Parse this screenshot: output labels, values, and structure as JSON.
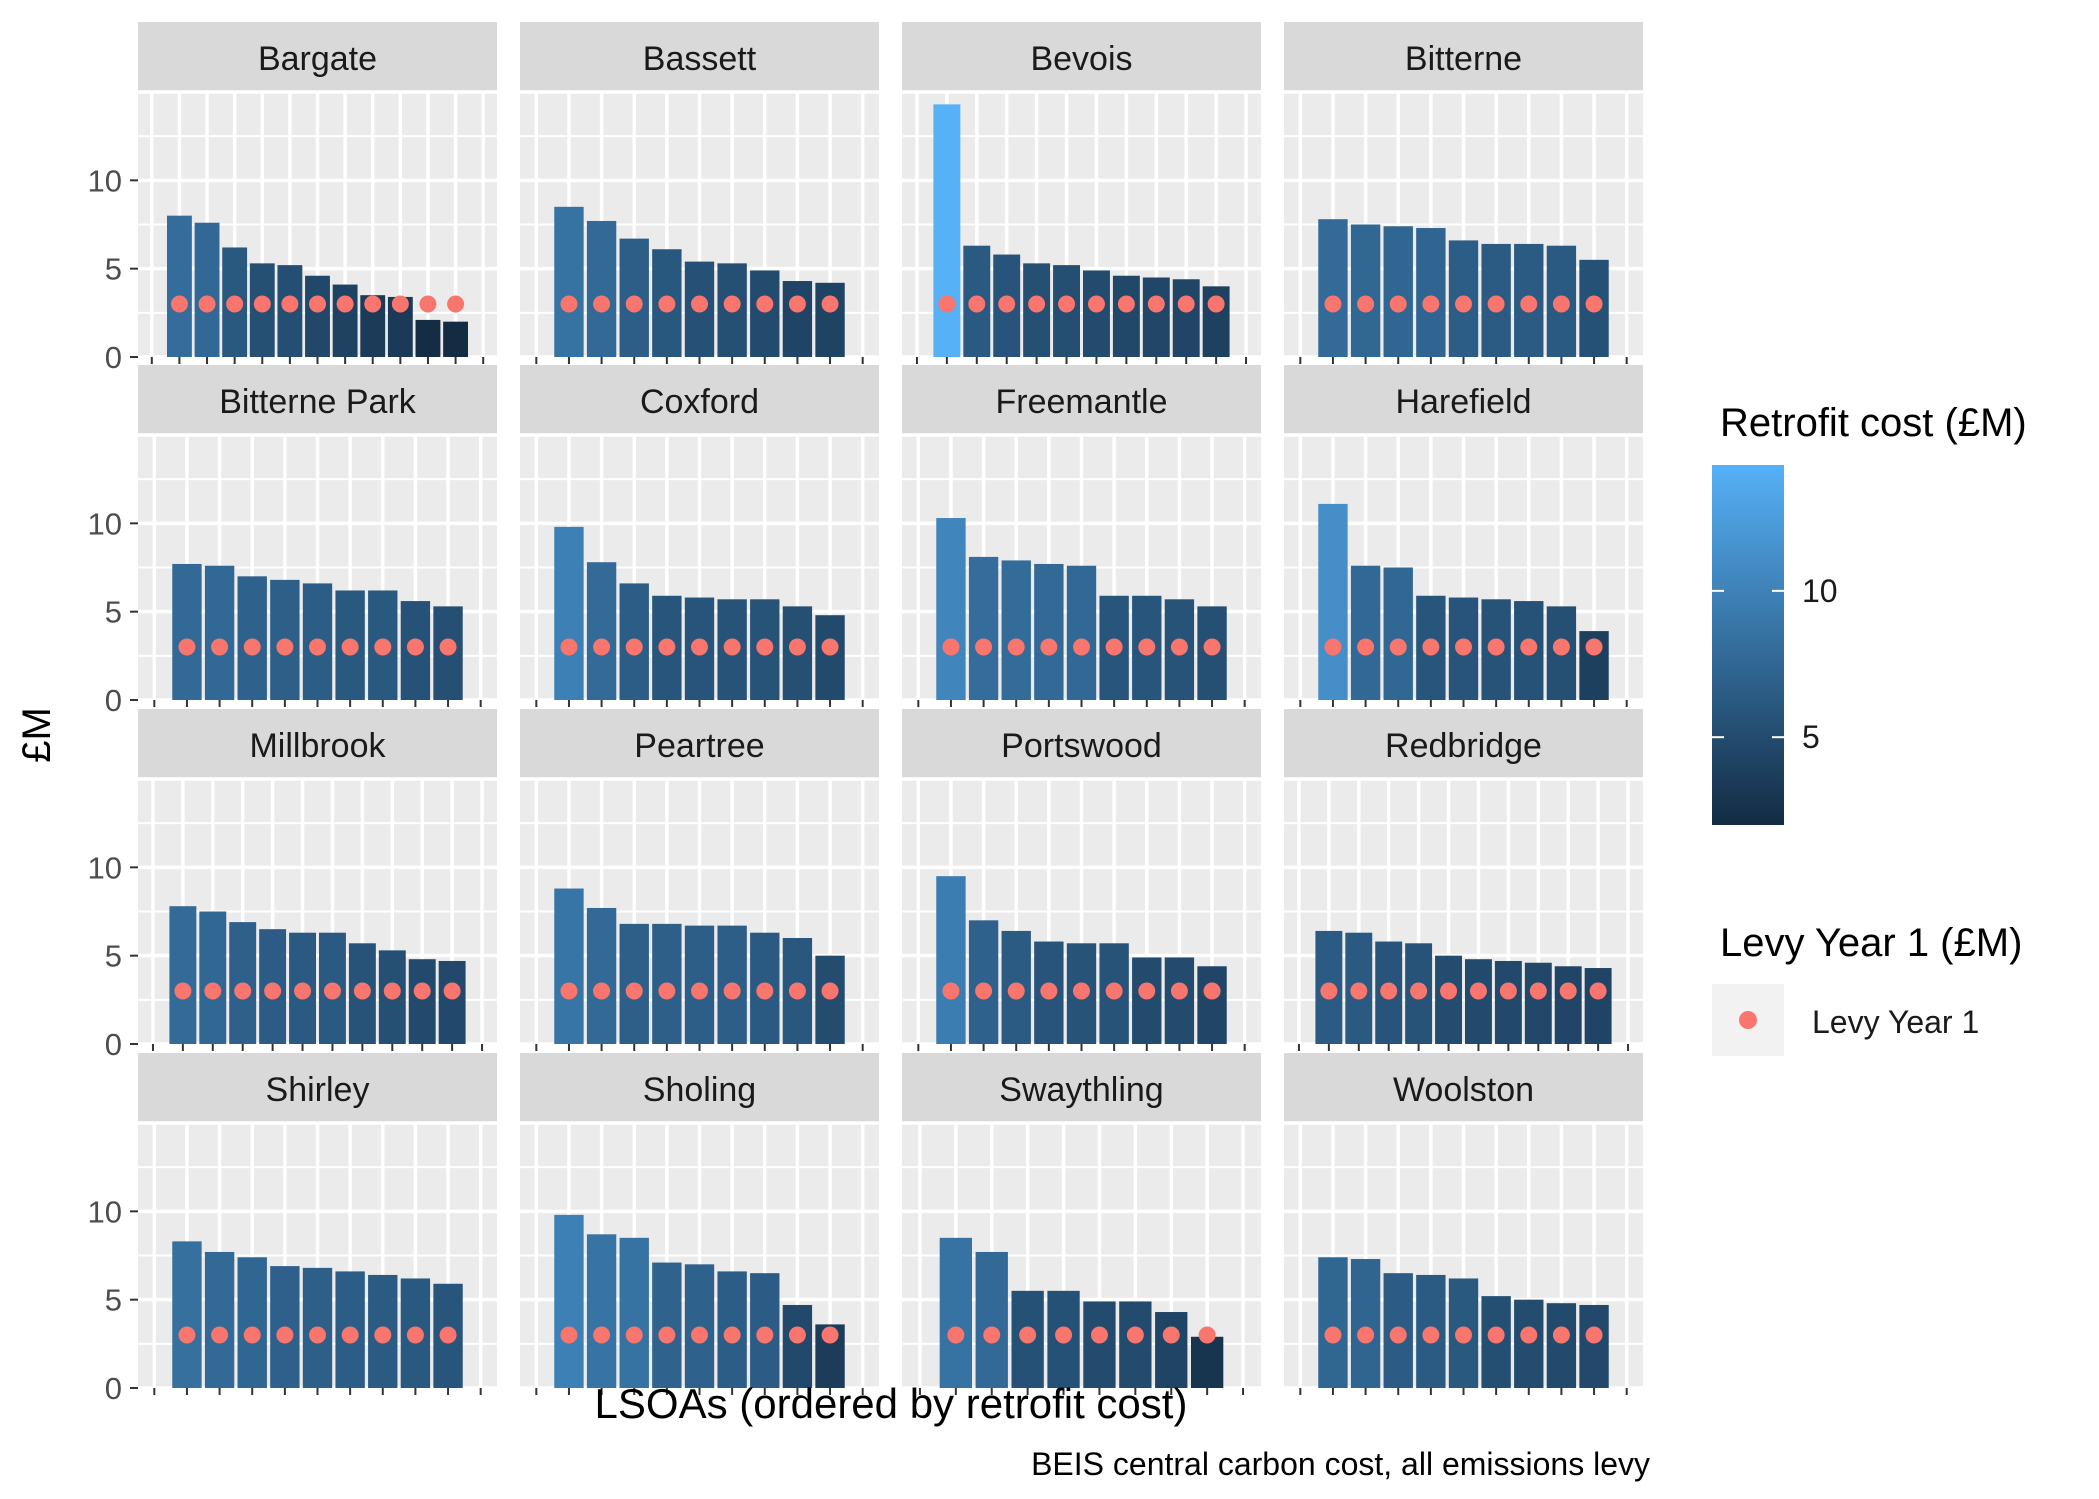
{
  "chart_data": {
    "type": "bar",
    "subtype": "faceted bar chart with point overlay",
    "xlabel": "LSOAs (ordered by retrofit cost)",
    "ylabel": "£M",
    "caption": "BEIS central carbon cost, all emissions levy",
    "ylim": [
      0,
      15
    ],
    "yticks": [
      "0",
      "5",
      "10"
    ],
    "facet_layout": "4x4",
    "colors": {
      "panel_bg": "#EBEBEB",
      "strip_bg": "#D9D9D9",
      "grid": "#FFFFFF",
      "gradient_low": "#132B43",
      "gradient_high": "#56B1F7",
      "levy_point": "#F8766D"
    },
    "legend": {
      "position": "right",
      "fill_title": "Retrofit cost (£M)",
      "fill_range": [
        2,
        14.3
      ],
      "fill_breaks": [
        "5",
        "10"
      ],
      "point_title": "Levy Year 1 (£M)",
      "point_label": "Levy Year 1"
    },
    "panels": [
      {
        "ward": "Bargate",
        "retrofit": [
          8.0,
          7.6,
          6.2,
          5.3,
          5.2,
          4.6,
          4.1,
          3.5,
          3.4,
          2.1,
          2.0
        ],
        "levy": [
          3.0,
          3.0,
          3.0,
          3.0,
          3.0,
          3.0,
          3.0,
          3.0,
          3.0,
          3.0,
          3.0
        ]
      },
      {
        "ward": "Bassett",
        "retrofit": [
          8.5,
          7.7,
          6.7,
          6.1,
          5.4,
          5.3,
          4.9,
          4.3,
          4.2
        ],
        "levy": [
          3.0,
          3.0,
          3.0,
          3.0,
          3.0,
          3.0,
          3.0,
          3.0,
          3.0
        ]
      },
      {
        "ward": "Bevois",
        "retrofit": [
          14.3,
          6.3,
          5.8,
          5.3,
          5.2,
          4.9,
          4.6,
          4.5,
          4.4,
          4.0
        ],
        "levy": [
          3.0,
          3.0,
          3.0,
          3.0,
          3.0,
          3.0,
          3.0,
          3.0,
          3.0,
          3.0
        ]
      },
      {
        "ward": "Bitterne",
        "retrofit": [
          7.8,
          7.5,
          7.4,
          7.3,
          6.6,
          6.4,
          6.4,
          6.3,
          5.5
        ],
        "levy": [
          3.0,
          3.0,
          3.0,
          3.0,
          3.0,
          3.0,
          3.0,
          3.0,
          3.0
        ]
      },
      {
        "ward": "Bitterne Park",
        "retrofit": [
          7.7,
          7.6,
          7.0,
          6.8,
          6.6,
          6.2,
          6.2,
          5.6,
          5.3
        ],
        "levy": [
          3.0,
          3.0,
          3.0,
          3.0,
          3.0,
          3.0,
          3.0,
          3.0,
          3.0
        ]
      },
      {
        "ward": "Coxford",
        "retrofit": [
          9.8,
          7.8,
          6.6,
          5.9,
          5.8,
          5.7,
          5.7,
          5.3,
          4.8
        ],
        "levy": [
          3.0,
          3.0,
          3.0,
          3.0,
          3.0,
          3.0,
          3.0,
          3.0,
          3.0
        ]
      },
      {
        "ward": "Freemantle",
        "retrofit": [
          10.3,
          8.1,
          7.9,
          7.7,
          7.6,
          5.9,
          5.9,
          5.7,
          5.3
        ],
        "levy": [
          3.0,
          3.0,
          3.0,
          3.0,
          3.0,
          3.0,
          3.0,
          3.0,
          3.0
        ]
      },
      {
        "ward": "Harefield",
        "retrofit": [
          11.1,
          7.6,
          7.5,
          5.9,
          5.8,
          5.7,
          5.6,
          5.3,
          3.9
        ],
        "levy": [
          3.0,
          3.0,
          3.0,
          3.0,
          3.0,
          3.0,
          3.0,
          3.0,
          3.0
        ]
      },
      {
        "ward": "Millbrook",
        "retrofit": [
          7.8,
          7.5,
          6.9,
          6.5,
          6.3,
          6.3,
          5.7,
          5.3,
          4.8,
          4.7
        ],
        "levy": [
          3.0,
          3.0,
          3.0,
          3.0,
          3.0,
          3.0,
          3.0,
          3.0,
          3.0,
          3.0
        ]
      },
      {
        "ward": "Peartree",
        "retrofit": [
          8.8,
          7.7,
          6.8,
          6.8,
          6.7,
          6.7,
          6.3,
          6.0,
          5.0
        ],
        "levy": [
          3.0,
          3.0,
          3.0,
          3.0,
          3.0,
          3.0,
          3.0,
          3.0,
          3.0
        ]
      },
      {
        "ward": "Portswood",
        "retrofit": [
          9.5,
          7.0,
          6.4,
          5.8,
          5.7,
          5.7,
          4.9,
          4.9,
          4.4
        ],
        "levy": [
          3.0,
          3.0,
          3.0,
          3.0,
          3.0,
          3.0,
          3.0,
          3.0,
          3.0
        ]
      },
      {
        "ward": "Redbridge",
        "retrofit": [
          6.4,
          6.3,
          5.8,
          5.7,
          5.0,
          4.8,
          4.7,
          4.6,
          4.4,
          4.3
        ],
        "levy": [
          3.0,
          3.0,
          3.0,
          3.0,
          3.0,
          3.0,
          3.0,
          3.0,
          3.0,
          3.0
        ]
      },
      {
        "ward": "Shirley",
        "retrofit": [
          8.3,
          7.7,
          7.4,
          6.9,
          6.8,
          6.6,
          6.4,
          6.2,
          5.9
        ],
        "levy": [
          3.0,
          3.0,
          3.0,
          3.0,
          3.0,
          3.0,
          3.0,
          3.0,
          3.0
        ]
      },
      {
        "ward": "Sholing",
        "retrofit": [
          9.8,
          8.7,
          8.5,
          7.1,
          7.0,
          6.6,
          6.5,
          4.7,
          3.6
        ],
        "levy": [
          3.0,
          3.0,
          3.0,
          3.0,
          3.0,
          3.0,
          3.0,
          3.0,
          3.0
        ]
      },
      {
        "ward": "Swaythling",
        "retrofit": [
          8.5,
          7.7,
          5.5,
          5.5,
          4.9,
          4.9,
          4.3,
          2.9
        ],
        "levy": [
          3.0,
          3.0,
          3.0,
          3.0,
          3.0,
          3.0,
          3.0,
          3.0
        ]
      },
      {
        "ward": "Woolston",
        "retrofit": [
          7.4,
          7.3,
          6.5,
          6.4,
          6.2,
          5.2,
          5.0,
          4.8,
          4.7
        ],
        "levy": [
          3.0,
          3.0,
          3.0,
          3.0,
          3.0,
          3.0,
          3.0,
          3.0,
          3.0
        ]
      }
    ]
  }
}
